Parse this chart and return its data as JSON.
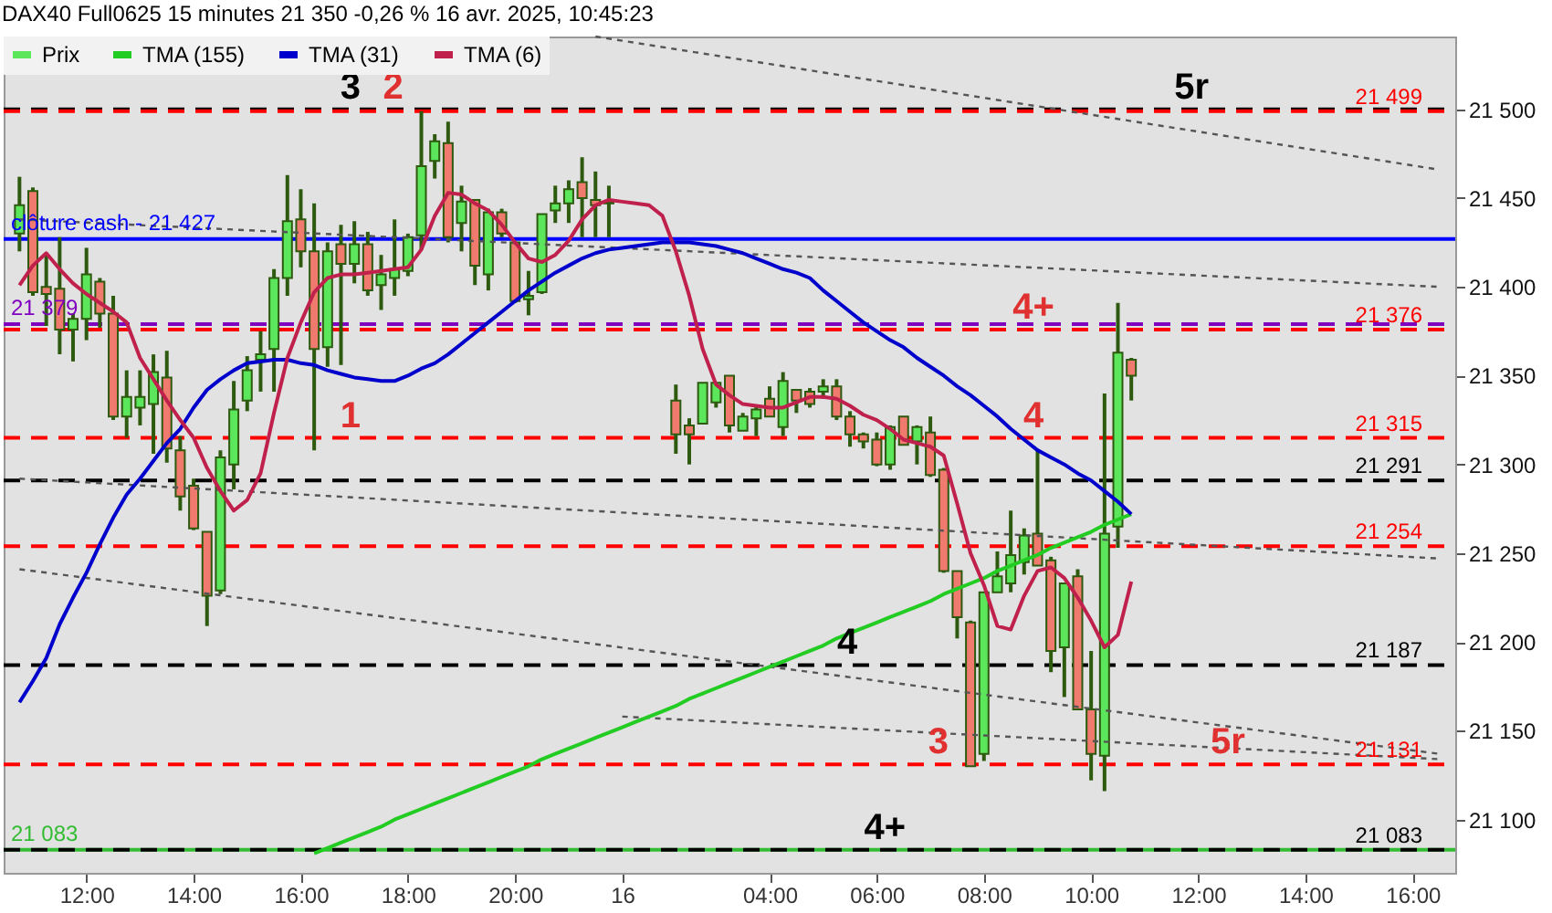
{
  "chart_data": {
    "type": "candlestick",
    "title": "DAX40 Full0625 15 minutes 21 350 -0,26 % 16 avr. 2025, 10:45:23",
    "categories": [
      null,
      null,
      null,
      null,
      null,
      "12:00",
      null,
      null,
      null,
      null,
      null,
      null,
      null,
      "14:00",
      null,
      null,
      null,
      null,
      null,
      null,
      null,
      "16:00",
      null,
      null,
      null,
      null,
      null,
      null,
      null,
      "18:00",
      null,
      null,
      null,
      null,
      null,
      null,
      null,
      "20:00",
      null,
      null,
      null,
      null,
      null,
      null,
      null,
      "16",
      null,
      null,
      null,
      null,
      null,
      null,
      null,
      null,
      null,
      null,
      "04:00",
      null,
      null,
      null,
      null,
      null,
      null,
      null,
      "06:00",
      null,
      null,
      null,
      null,
      null,
      null,
      null,
      "08:00",
      null,
      null,
      null,
      null,
      null,
      null,
      null,
      "10:00",
      null,
      null,
      null,
      null,
      null,
      null,
      null,
      "12:00",
      null,
      null,
      null,
      null,
      null,
      null,
      null,
      "14:00",
      null,
      null,
      null,
      null,
      null,
      null,
      null,
      "16:00",
      null,
      null
    ],
    "ylim": [
      21070,
      21541
    ],
    "yticks": [
      {
        "value": 21100,
        "label": "21 100"
      },
      {
        "value": 21150,
        "label": "21 150"
      },
      {
        "value": 21200,
        "label": "21 200"
      },
      {
        "value": 21250,
        "label": "21 250"
      },
      {
        "value": 21300,
        "label": "21 300"
      },
      {
        "value": 21350,
        "label": "21 350"
      },
      {
        "value": 21400,
        "label": "21 400"
      },
      {
        "value": 21450,
        "label": "21 450"
      },
      {
        "value": 21500,
        "label": "21 500"
      }
    ],
    "grid": false,
    "legend": "top left",
    "series": [
      {
        "name": "Prix",
        "color": "#5ce65c",
        "ohlc": [
          [
            21430,
            21462,
            21420,
            21446
          ],
          [
            21454,
            21456,
            21395,
            21397
          ],
          [
            21400,
            21418,
            21378,
            21396
          ],
          [
            21399,
            21428,
            21362,
            21376
          ],
          [
            21376,
            21385,
            21358,
            21382
          ],
          [
            21382,
            21422,
            21370,
            21407
          ],
          [
            21403,
            21405,
            21377,
            21385
          ],
          [
            21385,
            21395,
            21325,
            21327
          ],
          [
            21327,
            21353,
            21315,
            21338
          ],
          [
            21332,
            21353,
            21322,
            21338
          ],
          [
            21334,
            21362,
            21306,
            21352
          ],
          [
            21349,
            21364,
            21301,
            21309
          ],
          [
            21308,
            21316,
            21274,
            21282
          ],
          [
            21288,
            21292,
            21263,
            21264
          ],
          [
            21262,
            21262,
            21209,
            21226
          ],
          [
            21229,
            21308,
            21227,
            21304
          ],
          [
            21300,
            21347,
            21286,
            21331
          ],
          [
            21336,
            21361,
            21330,
            21353
          ],
          [
            21359,
            21375,
            21341,
            21362
          ],
          [
            21365,
            21410,
            21341,
            21405
          ],
          [
            21405,
            21463,
            21395,
            21437
          ],
          [
            21438,
            21455,
            21411,
            21420
          ],
          [
            21420,
            21447,
            21308,
            21365
          ],
          [
            21366,
            21425,
            21355,
            21420
          ],
          [
            21424,
            21435,
            21356,
            21413
          ],
          [
            21413,
            21437,
            21402,
            21424
          ],
          [
            21424,
            21431,
            21395,
            21398
          ],
          [
            21401,
            21418,
            21387,
            21407
          ],
          [
            21405,
            21438,
            21395,
            21410
          ],
          [
            21409,
            21430,
            21406,
            21428
          ],
          [
            21429,
            21499,
            21421,
            21468
          ],
          [
            21471,
            21486,
            21461,
            21482
          ],
          [
            21481,
            21493,
            21425,
            21428
          ],
          [
            21436,
            21457,
            21420,
            21448
          ],
          [
            21449,
            21449,
            21401,
            21412
          ],
          [
            21407,
            21444,
            21398,
            21442
          ],
          [
            21442,
            21444,
            21428,
            21430
          ],
          [
            21425,
            21425,
            21391,
            21392
          ],
          [
            21393,
            21409,
            21384,
            21395
          ],
          [
            21397,
            21441,
            21396,
            21441
          ],
          [
            21443,
            21457,
            21436,
            21447
          ],
          [
            21447,
            21460,
            21436,
            21455
          ],
          [
            21459,
            21473,
            21428,
            21450
          ],
          [
            21449,
            21465,
            21428,
            21446
          ],
          [
            21448,
            21457,
            21428,
            21447
          ],
          null,
          null,
          null,
          null,
          [
            21336,
            21345,
            21306,
            21317
          ],
          [
            21322,
            21326,
            21300,
            21317
          ],
          [
            21323,
            21346,
            21323,
            21346
          ],
          [
            21335,
            21346,
            21332,
            21346
          ],
          [
            21350,
            21350,
            21318,
            21322
          ],
          [
            21319,
            21329,
            21319,
            21327
          ],
          [
            21326,
            21333,
            21316,
            21331
          ],
          [
            21337,
            21344,
            21327,
            21327
          ],
          [
            21321,
            21352,
            21316,
            21347
          ],
          [
            21342,
            21342,
            21329,
            21336
          ],
          [
            21341,
            21343,
            21332,
            21334
          ],
          [
            21341,
            21348,
            21337,
            21344
          ],
          [
            21344,
            21348,
            21325,
            21327
          ],
          [
            21327,
            21330,
            21310,
            21317
          ],
          [
            21317,
            21318,
            21309,
            21313
          ],
          [
            21314,
            21318,
            21299,
            21300
          ],
          [
            21300,
            21322,
            21297,
            21321
          ],
          [
            21327,
            21327,
            21311,
            21311
          ],
          [
            21313,
            21322,
            21300,
            21321
          ],
          [
            21318,
            21327,
            21293,
            21294
          ],
          [
            21297,
            21298,
            21239,
            21240
          ],
          [
            21240,
            21240,
            21202,
            21214
          ],
          [
            21211,
            21212,
            21130,
            21130
          ],
          [
            21137,
            21228,
            21133,
            21228
          ],
          [
            21228,
            21251,
            21228,
            21237
          ],
          [
            21233,
            21274,
            21228,
            21249
          ],
          [
            21245,
            21264,
            21238,
            21260
          ],
          [
            21261,
            21308,
            21243,
            21243
          ],
          [
            21246,
            21248,
            21183,
            21195
          ],
          [
            21197,
            21233,
            21169,
            21233
          ],
          [
            21237,
            21241,
            21162,
            21162
          ],
          [
            21162,
            21195,
            21122,
            21137
          ],
          [
            21136,
            21340,
            21116,
            21261
          ],
          [
            21265,
            21391,
            21253,
            21363
          ],
          [
            21359,
            21360,
            21336,
            21350
          ],
          null,
          null,
          null,
          null,
          null,
          null,
          null,
          null,
          null,
          null,
          null,
          null,
          null,
          null,
          null,
          null,
          null,
          null,
          null,
          null,
          null,
          null,
          null
        ],
        "colors": [
          "#5ce65c",
          "#f07a6e",
          "#f07a6e",
          "#f07a6e",
          "#5ce65c",
          "#5ce65c",
          "#f07a6e",
          "#f07a6e",
          "#5ce65c",
          "#5ce65c",
          "#5ce65c",
          "#f07a6e",
          "#f07a6e",
          "#f07a6e",
          "#f07a6e",
          "#5ce65c",
          "#5ce65c",
          "#5ce65c",
          "#5ce65c",
          "#5ce65c",
          "#5ce65c",
          "#f07a6e",
          "#f07a6e",
          "#5ce65c",
          "#f07a6e",
          "#5ce65c",
          "#f07a6e",
          "#5ce65c",
          "#5ce65c",
          "#5ce65c",
          "#5ce65c",
          "#5ce65c",
          "#f07a6e",
          "#5ce65c",
          "#f07a6e",
          "#5ce65c",
          "#f07a6e",
          "#f07a6e",
          "#5ce65c",
          "#5ce65c",
          "#5ce65c",
          "#5ce65c",
          "#f07a6e",
          "#f07a6e",
          "#f07a6e",
          null,
          null,
          null,
          null,
          "#f07a6e",
          "#f07a6e",
          "#5ce65c",
          "#5ce65c",
          "#f07a6e",
          "#5ce65c",
          "#5ce65c",
          "#f07a6e",
          "#5ce65c",
          "#f07a6e",
          "#f07a6e",
          "#5ce65c",
          "#f07a6e",
          "#f07a6e",
          "#f07a6e",
          "#f07a6e",
          "#5ce65c",
          "#f07a6e",
          "#5ce65c",
          "#f07a6e",
          "#f07a6e",
          "#f07a6e",
          "#f07a6e",
          "#5ce65c",
          "#5ce65c",
          "#5ce65c",
          "#5ce65c",
          "#f07a6e",
          "#f07a6e",
          "#5ce65c",
          "#f07a6e",
          "#f07a6e",
          "#5ce65c",
          "#5ce65c",
          "#f07a6e",
          null,
          null,
          null,
          null,
          null,
          null,
          null,
          null,
          null,
          null,
          null,
          null,
          null,
          null,
          null,
          null,
          null,
          null,
          null,
          null,
          null,
          null,
          null
        ]
      },
      {
        "name": "TMA (155)",
        "type": "line",
        "color": "#22cc22",
        "values": [
          null,
          null,
          null,
          null,
          null,
          null,
          null,
          null,
          null,
          null,
          null,
          null,
          null,
          null,
          null,
          null,
          null,
          null,
          null,
          null,
          null,
          null,
          21081,
          21084,
          21087,
          21090,
          21093,
          21096,
          21100,
          21103,
          21106,
          21109,
          21112,
          21115,
          21118,
          21121,
          21124,
          21127,
          21130,
          21134,
          21137,
          21140,
          21143,
          21146,
          21149,
          21152,
          21155,
          21158,
          21161,
          21164,
          21168,
          21171,
          21174,
          21177,
          21180,
          21183,
          21186,
          21189,
          21192,
          21195,
          21198,
          21202,
          21205,
          21208,
          21211,
          21214,
          21217,
          21220,
          21223,
          21227,
          21230,
          21233,
          21236,
          21240,
          21243,
          21246,
          21249,
          21253,
          21256,
          21259,
          21262,
          21266,
          21269,
          21272,
          null,
          null,
          null,
          null,
          null,
          null,
          null,
          null,
          null,
          null,
          null,
          null,
          null,
          null,
          null,
          null,
          null,
          null,
          null,
          null,
          null,
          null,
          null
        ]
      },
      {
        "name": "TMA (31)",
        "type": "line",
        "color": "#0000cc",
        "values": [
          21166,
          21178,
          21191,
          21210,
          21225,
          21239,
          21255,
          21270,
          21283,
          21292,
          21302,
          21312,
          21320,
          21332,
          21342,
          21348,
          21353,
          21357,
          21358,
          21359,
          21359,
          21357,
          21356,
          21353,
          21351,
          21349,
          21348,
          21347,
          21347,
          21350,
          21354,
          21357,
          21362,
          21368,
          21374,
          21380,
          21386,
          21392,
          21398,
          21403,
          21408,
          21412,
          21416,
          21419,
          21421,
          21422,
          21423,
          21424,
          21425,
          21425,
          21425,
          21424,
          21423,
          21421,
          21419,
          21416,
          21413,
          21410,
          21408,
          21405,
          21398,
          21392,
          21386,
          21380,
          21375,
          21370,
          21366,
          21360,
          21355,
          21350,
          21344,
          21339,
          21333,
          21327,
          21320,
          21314,
          21308,
          21304,
          21300,
          21295,
          21291,
          21285,
          21279,
          21272,
          null,
          null,
          null,
          null,
          null,
          null,
          null,
          null,
          null,
          null,
          null,
          null,
          null,
          null,
          null,
          null,
          null,
          null,
          null,
          null,
          null,
          null,
          null
        ]
      },
      {
        "name": "TMA (6)",
        "type": "line",
        "color": "#c0204c",
        "values": [
          21401,
          21412,
          21419,
          21410,
          21402,
          21396,
          21391,
          21386,
          21380,
          21360,
          21348,
          21336,
          21325,
          21315,
          21298,
          21285,
          21274,
          21280,
          21295,
          21329,
          21360,
          21380,
          21397,
          21405,
          21407,
          21407,
          21408,
          21409,
          21410,
          21411,
          21421,
          21440,
          21453,
          21452,
          21447,
          21443,
          21435,
          21425,
          21416,
          21414,
          21418,
          21426,
          21438,
          21446,
          21449,
          21448,
          21447,
          21446,
          21440,
          21420,
          21395,
          21365,
          21345,
          21339,
          21334,
          21333,
          21332,
          21332,
          21335,
          21338,
          21338,
          21337,
          21333,
          21328,
          21325,
          21320,
          21314,
          21312,
          21310,
          21305,
          21278,
          21250,
          21232,
          21209,
          21207,
          21226,
          21240,
          21242,
          21236,
          21225,
          21212,
          21197,
          21204,
          21234,
          null,
          null,
          null,
          null,
          null,
          null,
          null,
          null,
          null,
          null,
          null,
          null,
          null,
          null,
          null,
          null,
          null,
          null,
          null,
          null,
          null,
          null,
          null
        ]
      },
      {
        "type": "line",
        "color": "#555555",
        "line_style": "dotted",
        "values": [
          null,
          null,
          null,
          null,
          null,
          null,
          null,
          null,
          null,
          null,
          null,
          null,
          null,
          null,
          null,
          null,
          null,
          null,
          null,
          null,
          null,
          null,
          null,
          null,
          null,
          null,
          null,
          null,
          null,
          null,
          null,
          null,
          null,
          null,
          null,
          null,
          null,
          null,
          null,
          null,
          null,
          null,
          null,
          21541,
          null,
          null,
          null,
          null,
          null,
          null,
          null,
          null,
          null,
          null,
          null,
          null,
          null,
          null,
          null,
          null,
          null,
          null,
          null,
          null,
          null,
          null,
          null,
          null,
          null,
          null,
          null,
          null,
          null,
          null,
          null,
          null,
          null,
          null,
          null,
          null,
          null,
          null,
          null,
          null,
          null,
          null,
          null,
          null,
          null,
          null,
          null,
          null,
          null,
          null,
          null,
          null,
          null,
          null,
          null,
          null,
          null,
          null,
          null,
          null,
          null,
          null,
          21466
        ]
      },
      {
        "type": "line",
        "color": "#555555",
        "line_style": "dotted",
        "values": [
          21438,
          null,
          null,
          null,
          null,
          null,
          null,
          null,
          null,
          null,
          null,
          null,
          null,
          null,
          null,
          null,
          null,
          null,
          null,
          null,
          null,
          null,
          null,
          null,
          null,
          null,
          null,
          null,
          null,
          null,
          null,
          null,
          null,
          null,
          null,
          null,
          null,
          null,
          null,
          null,
          null,
          null,
          null,
          null,
          null,
          null,
          null,
          null,
          null,
          null,
          null,
          null,
          null,
          null,
          null,
          null,
          null,
          null,
          null,
          null,
          null,
          null,
          null,
          null,
          null,
          null,
          null,
          null,
          null,
          null,
          null,
          null,
          null,
          null,
          null,
          null,
          null,
          null,
          null,
          null,
          null,
          null,
          null,
          null,
          null,
          null,
          null,
          null,
          null,
          null,
          null,
          null,
          null,
          null,
          null,
          null,
          null,
          null,
          null,
          null,
          null,
          null,
          null,
          null,
          null,
          null,
          21400
        ]
      },
      {
        "type": "line",
        "color": "#555555",
        "line_style": "dotted",
        "values": [
          21292,
          null,
          null,
          null,
          null,
          null,
          null,
          null,
          null,
          null,
          null,
          null,
          null,
          null,
          null,
          null,
          null,
          null,
          null,
          null,
          null,
          null,
          null,
          null,
          null,
          null,
          null,
          null,
          null,
          null,
          null,
          null,
          null,
          null,
          null,
          null,
          null,
          null,
          null,
          null,
          null,
          null,
          null,
          null,
          null,
          null,
          null,
          null,
          null,
          null,
          null,
          null,
          null,
          null,
          null,
          null,
          null,
          null,
          null,
          null,
          null,
          null,
          null,
          null,
          null,
          null,
          null,
          null,
          null,
          null,
          null,
          null,
          null,
          null,
          null,
          null,
          null,
          null,
          null,
          null,
          null,
          null,
          null,
          null,
          null,
          null,
          null,
          null,
          null,
          null,
          null,
          null,
          null,
          null,
          null,
          null,
          null,
          null,
          null,
          null,
          null,
          null,
          null,
          null,
          null,
          null,
          21247
        ]
      },
      {
        "type": "line",
        "color": "#555555",
        "line_style": "dotted",
        "values": [
          21241,
          null,
          null,
          null,
          null,
          null,
          null,
          null,
          null,
          null,
          null,
          null,
          null,
          null,
          null,
          null,
          null,
          null,
          null,
          null,
          null,
          null,
          null,
          null,
          null,
          null,
          null,
          null,
          null,
          null,
          null,
          null,
          null,
          null,
          null,
          null,
          null,
          null,
          null,
          null,
          null,
          null,
          null,
          null,
          null,
          null,
          null,
          null,
          null,
          null,
          null,
          null,
          null,
          null,
          null,
          null,
          null,
          null,
          null,
          null,
          null,
          null,
          null,
          null,
          null,
          null,
          null,
          null,
          null,
          null,
          null,
          null,
          null,
          null,
          null,
          null,
          null,
          null,
          null,
          null,
          null,
          null,
          null,
          null,
          null,
          null,
          null,
          null,
          null,
          null,
          null,
          null,
          null,
          null,
          null,
          null,
          null,
          null,
          null,
          null,
          null,
          null,
          null,
          null,
          null,
          null,
          21137
        ]
      },
      {
        "type": "line",
        "color": "#555555",
        "line_style": "dotted",
        "values": [
          null,
          null,
          null,
          null,
          null,
          null,
          null,
          null,
          null,
          null,
          null,
          null,
          null,
          null,
          null,
          null,
          null,
          null,
          null,
          null,
          null,
          null,
          null,
          null,
          null,
          null,
          null,
          null,
          null,
          null,
          null,
          null,
          null,
          null,
          null,
          null,
          null,
          null,
          null,
          null,
          null,
          null,
          null,
          null,
          null,
          21158,
          null,
          null,
          null,
          null,
          null,
          null,
          null,
          null,
          null,
          null,
          null,
          null,
          null,
          null,
          null,
          null,
          null,
          null,
          null,
          null,
          null,
          null,
          null,
          null,
          null,
          null,
          null,
          null,
          null,
          null,
          null,
          null,
          null,
          null,
          null,
          null,
          null,
          null,
          null,
          null,
          null,
          null,
          null,
          null,
          null,
          null,
          null,
          null,
          null,
          null,
          null,
          null,
          null,
          null,
          null,
          null,
          null,
          null,
          null,
          null,
          21134
        ]
      }
    ],
    "ref_lines": [
      {
        "axis": "y",
        "value": 21500,
        "color": "#000000",
        "line_style": "dashed"
      },
      {
        "axis": "y",
        "value": 21499,
        "label": "21 499",
        "color": "#ff0000",
        "line_style": "dashed"
      },
      {
        "axis": "y",
        "value": 21427,
        "label": "clôture cash -  21 427",
        "color": "#0000ff",
        "line_style": "solid"
      },
      {
        "axis": "y",
        "value": 21379,
        "label": "21 379",
        "color": "#8000c0",
        "line_style": "dashed"
      },
      {
        "axis": "y",
        "value": 21376,
        "label": "21 376",
        "color": "#ff0000",
        "line_style": "dashed"
      },
      {
        "axis": "y",
        "value": 21315,
        "label": "21 315",
        "color": "#ff0000",
        "line_style": "dashed"
      },
      {
        "axis": "y",
        "value": 21291,
        "label": "21 291",
        "color": "#000000",
        "line_style": "dashed"
      },
      {
        "axis": "y",
        "value": 21254,
        "label": "21 254",
        "color": "#ff0000",
        "line_style": "dashed"
      },
      {
        "axis": "y",
        "value": 21187,
        "label": "21 187",
        "color": "#000000",
        "line_style": "dashed"
      },
      {
        "axis": "y",
        "value": 21131,
        "label": "21 131",
        "color": "#ff0000",
        "line_style": "dashed"
      },
      {
        "axis": "y",
        "value": 21083,
        "label": "21 083",
        "color": "#33bb33",
        "line_style": "solid"
      },
      {
        "axis": "y",
        "value": 21083,
        "label": "21 083",
        "color": "#000000",
        "line_style": "dashed"
      }
    ],
    "annotations": [
      {
        "text": "3",
        "y": 21500
      },
      {
        "text": "2",
        "y": 21500
      },
      {
        "text": "5r",
        "y": 21500
      },
      {
        "text": "1",
        "y": 21315
      },
      {
        "text": "4+",
        "y": 21376
      },
      {
        "text": "4",
        "y": 21315
      },
      {
        "text": "4",
        "y": 21187
      },
      {
        "text": "3",
        "y": 21131
      },
      {
        "text": "5r",
        "y": 21131
      },
      {
        "text": "4+",
        "y": 21083
      }
    ]
  }
}
